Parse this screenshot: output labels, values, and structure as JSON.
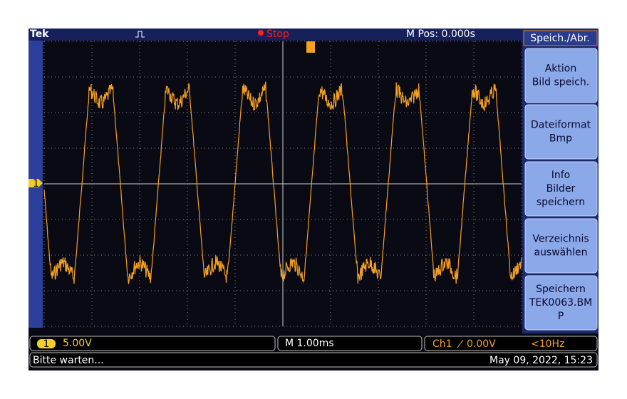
{
  "header": {
    "brand": "Tek",
    "status": "Stop",
    "position": "M Pos: 0.000s"
  },
  "menu": {
    "title": "Speich./Abr.",
    "buttons": [
      [
        "Aktion",
        "Bild speich."
      ],
      [
        "Dateiformat",
        "Bmp"
      ],
      [
        "Info",
        "Bilder",
        "speichern"
      ],
      [
        "Verzeichnis",
        "auswählen"
      ],
      [
        "Speichern",
        "TEK0063.BM",
        "P"
      ]
    ]
  },
  "marker": "1",
  "footer": {
    "channel": "1",
    "scale": "5.00V",
    "timebase": "M 1.00ms",
    "trigger_source": "Ch1",
    "trigger_level": "0.00V",
    "frequency": "<10Hz",
    "message": "Bitte warten...",
    "datetime": "May 09, 2022, 15:23"
  }
}
